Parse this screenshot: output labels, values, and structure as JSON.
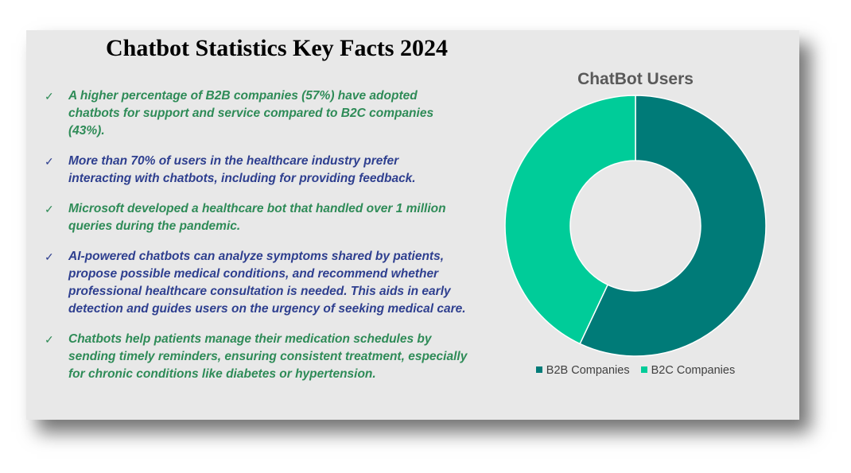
{
  "title": "Chatbot Statistics Key Facts 2024",
  "facts": [
    {
      "lines": [
        "A higher percentage of B2B companies (57%) have adopted",
        "chatbots for support and service compared to B2C companies",
        "(43%)."
      ],
      "color": "#2e8b57"
    },
    {
      "lines": [
        "More than 70% of users in the healthcare industry prefer",
        "interacting with chatbots, including for providing feedback."
      ],
      "color": "#2e3f8f"
    },
    {
      "lines": [
        "Microsoft developed a healthcare bot that handled over 1 million",
        "queries during the pandemic."
      ],
      "color": "#2e8b57"
    },
    {
      "lines": [
        "AI-powered chatbots can analyze symptoms shared by patients,",
        "propose possible medical conditions, and recommend whether",
        "professional healthcare consultation is needed. This aids in early",
        "detection and guides users on the urgency of seeking medical care."
      ],
      "color": "#2e3f8f"
    },
    {
      "lines": [
        "Chatbots help patients manage their medication schedules by",
        "sending timely reminders, ensuring consistent treatment, especially",
        "for chronic conditions like diabetes or hypertension."
      ],
      "color": "#2e8b57"
    }
  ],
  "check_icon": "checkmark-icon",
  "chart_data": {
    "type": "pie",
    "variant": "donut",
    "title": "ChatBot Users",
    "categories": [
      "B2B Companies",
      "B2C Companies"
    ],
    "values": [
      57,
      43
    ],
    "colors": [
      "#007b78",
      "#00cc99"
    ],
    "legend": "bottom"
  }
}
